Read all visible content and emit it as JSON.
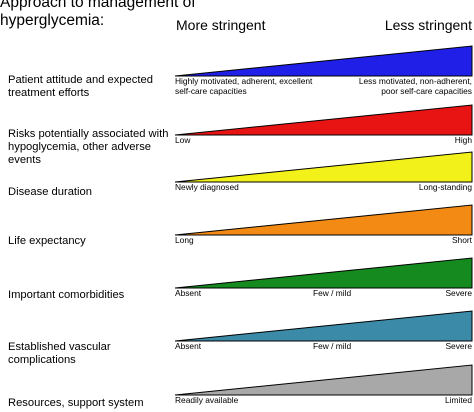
{
  "title": "Approach to management of hyperglycemia:",
  "header": {
    "left": "More stringent",
    "right": "Less stringent"
  },
  "rows": [
    {
      "label": "Patient attitude and expected treatment efforts",
      "color": "#1f1fe8",
      "left": "Highly motivated, adherent, excellent self-care capacities",
      "mid": "",
      "right": "Less motivated, non-adherent, poor self-care capacities"
    },
    {
      "label": "Risks potentially associated with hypoglycemia, other adverse events",
      "color": "#e81414",
      "left": "Low",
      "mid": "",
      "right": "High"
    },
    {
      "label": "Disease duration",
      "color": "#f2f21a",
      "left": "Newly diagnosed",
      "mid": "",
      "right": "Long-standing"
    },
    {
      "label": "Life expectancy",
      "color": "#f28a14",
      "left": "Long",
      "mid": "",
      "right": "Short"
    },
    {
      "label": "Important comorbidities",
      "color": "#148a1f",
      "left": "Absent",
      "mid": "Few / mild",
      "right": "Severe"
    },
    {
      "label": "Established vascular complications",
      "color": "#3b8aa8",
      "left": "Absent",
      "mid": "Few / mild",
      "right": "Severe"
    },
    {
      "label": "Resources, support system",
      "color": "#a8a8a8",
      "left": "Readily available",
      "mid": "",
      "right": "Limited"
    }
  ]
}
